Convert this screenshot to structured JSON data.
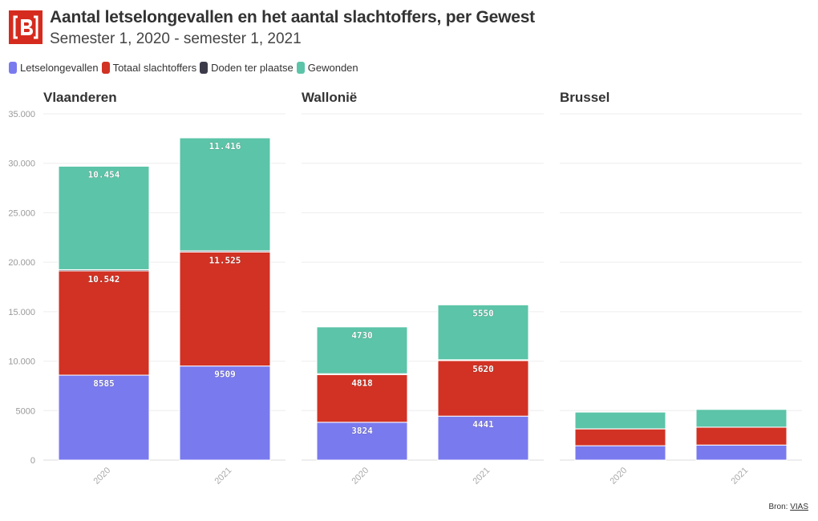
{
  "header": {
    "title": "Aantal letselongevallen en het aantal slachtoffers, per Gewest",
    "subtitle": "Semester 1, 2020 - semester 1, 2021"
  },
  "legend": [
    {
      "label": "Letselongevallen",
      "color": "#7a7aef"
    },
    {
      "label": "Totaal slachtoffers",
      "color": "#d13224"
    },
    {
      "label": "Doden ter plaatse",
      "color": "#3b3b4a"
    },
    {
      "label": "Gewonden",
      "color": "#5cc4a8"
    }
  ],
  "footer": {
    "source_prefix": "Bron:",
    "source_link": "VIAS"
  },
  "chart_data": {
    "type": "bar",
    "stacked": true,
    "ylim": [
      0,
      35000
    ],
    "yticks": [
      0,
      5000,
      10000,
      15000,
      20000,
      25000,
      30000,
      35000
    ],
    "ytick_labels": [
      "0",
      "5000",
      "10.000",
      "15.000",
      "20.000",
      "25.000",
      "30.000",
      "35.000"
    ],
    "categories": [
      "2020",
      "2021"
    ],
    "panels": [
      {
        "name": "Vlaanderen",
        "series": [
          {
            "name": "Letselongevallen",
            "values": [
              8585,
              9509
            ],
            "labels": [
              "8585",
              "9509"
            ]
          },
          {
            "name": "Totaal slachtoffers",
            "values": [
              10542,
              11525
            ],
            "labels": [
              "10.542",
              "11.525"
            ]
          },
          {
            "name": "Doden ter plaatse",
            "values": [
              120,
              120
            ],
            "labels": [
              "",
              ""
            ]
          },
          {
            "name": "Gewonden",
            "values": [
              10454,
              11416
            ],
            "labels": [
              "10.454",
              "11.416"
            ]
          }
        ]
      },
      {
        "name": "Wallonië",
        "series": [
          {
            "name": "Letselongevallen",
            "values": [
              3824,
              4441
            ],
            "labels": [
              "3824",
              "4441"
            ]
          },
          {
            "name": "Totaal slachtoffers",
            "values": [
              4818,
              5620
            ],
            "labels": [
              "4818",
              "5620"
            ]
          },
          {
            "name": "Doden ter plaatse",
            "values": [
              90,
              80
            ],
            "labels": [
              "",
              ""
            ]
          },
          {
            "name": "Gewonden",
            "values": [
              4730,
              5550
            ],
            "labels": [
              "4730",
              "5550"
            ]
          }
        ]
      },
      {
        "name": "Brussel",
        "series": [
          {
            "name": "Letselongevallen",
            "values": [
              1450,
              1520
            ],
            "labels": [
              "",
              ""
            ]
          },
          {
            "name": "Totaal slachtoffers",
            "values": [
              1700,
              1800
            ],
            "labels": [
              "",
              ""
            ]
          },
          {
            "name": "Doden ter plaatse",
            "values": [
              10,
              10
            ],
            "labels": [
              "",
              ""
            ]
          },
          {
            "name": "Gewonden",
            "values": [
              1690,
              1790
            ],
            "labels": [
              "",
              ""
            ]
          }
        ]
      }
    ]
  }
}
